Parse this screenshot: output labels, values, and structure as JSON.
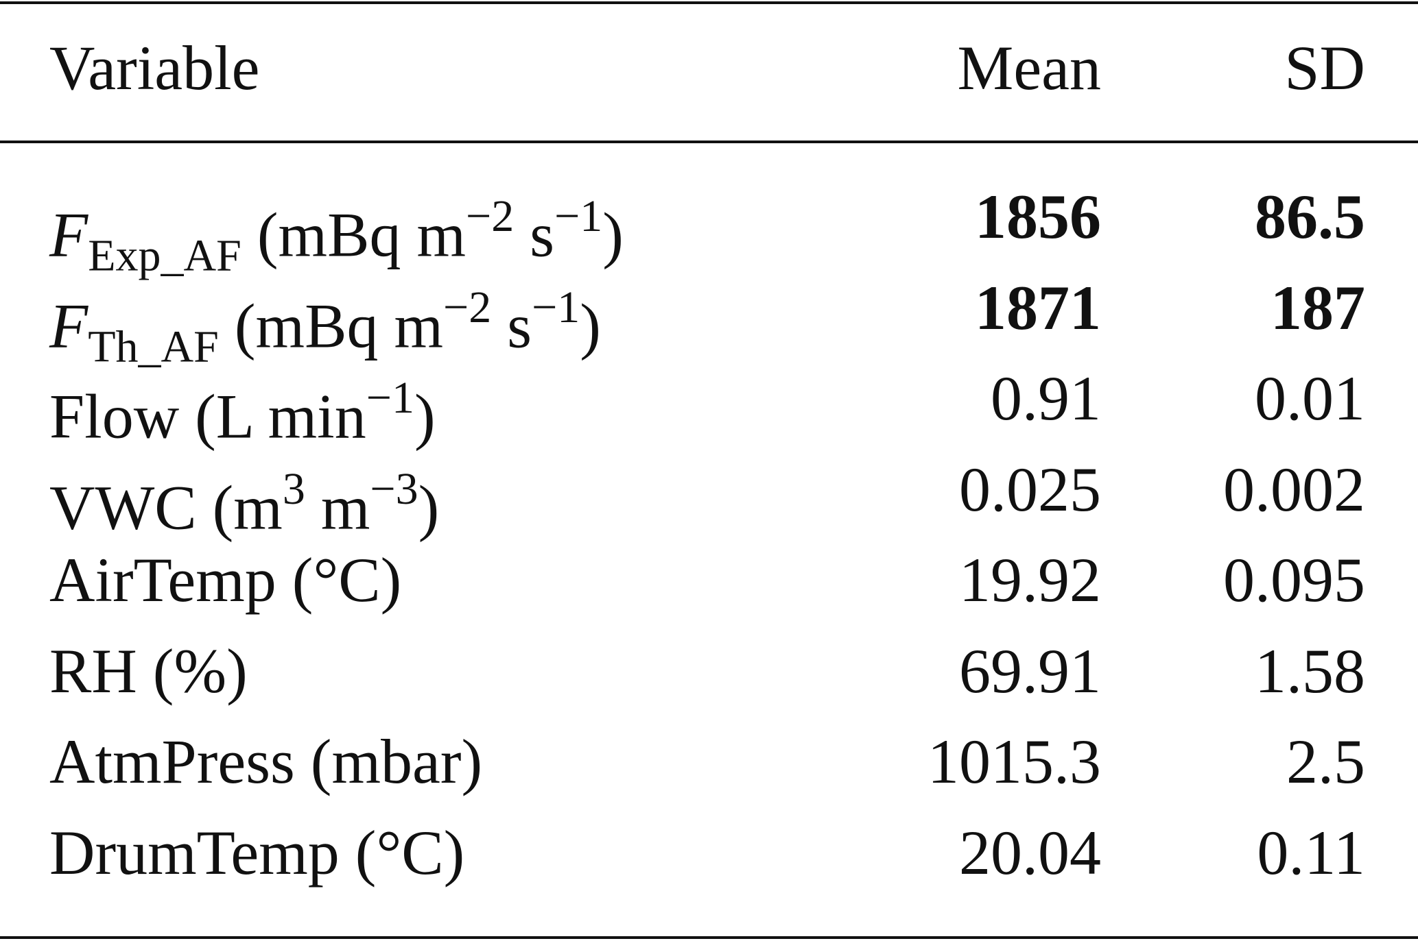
{
  "table": {
    "header": [
      "Variable",
      "Mean",
      "SD"
    ],
    "rows": [
      {
        "label": [
          {
            "text": "F",
            "style": "italic"
          },
          {
            "text": "Exp_AF",
            "style": "sub"
          },
          {
            "text": " (mBq m"
          },
          {
            "text": "−2",
            "style": "sup"
          },
          {
            "text": " s"
          },
          {
            "text": "−1",
            "style": "sup"
          },
          {
            "text": ")"
          }
        ],
        "mean": 1856,
        "sd": 86.5,
        "bold": true
      },
      {
        "label": [
          {
            "text": "F",
            "style": "italic"
          },
          {
            "text": "Th_AF",
            "style": "sub"
          },
          {
            "text": " (mBq m"
          },
          {
            "text": "−2",
            "style": "sup"
          },
          {
            "text": " s"
          },
          {
            "text": "−1",
            "style": "sup"
          },
          {
            "text": ")"
          }
        ],
        "mean": 1871,
        "sd": 187,
        "bold": true
      },
      {
        "label": [
          {
            "text": "Flow (L min"
          },
          {
            "text": "−1",
            "style": "sup"
          },
          {
            "text": ")"
          }
        ],
        "mean": 0.91,
        "sd": 0.01
      },
      {
        "label": [
          {
            "text": "VWC (m"
          },
          {
            "text": "3",
            "style": "sup"
          },
          {
            "text": " m"
          },
          {
            "text": "−3",
            "style": "sup"
          },
          {
            "text": ")"
          }
        ],
        "mean": 0.025,
        "sd": 0.002
      },
      {
        "label": [
          {
            "text": "AirTemp (°C)"
          }
        ],
        "mean": 19.92,
        "sd": 0.095
      },
      {
        "label": [
          {
            "text": "RH (%)"
          }
        ],
        "mean": 69.91,
        "sd": 1.58
      },
      {
        "label": [
          {
            "text": "AtmPress (mbar)"
          }
        ],
        "mean": 1015.3,
        "sd": 2.5
      },
      {
        "label": [
          {
            "text": "DrumTemp (°C)"
          }
        ],
        "mean": 20.04,
        "sd": 0.11
      }
    ]
  }
}
